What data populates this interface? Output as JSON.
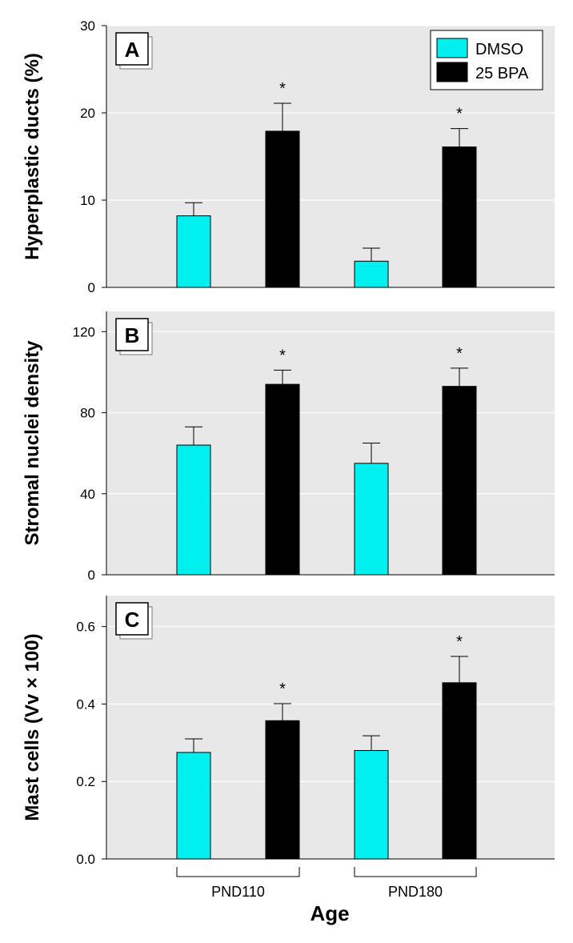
{
  "chart_data": [
    {
      "type": "bar",
      "panel": "A",
      "ylabel": "Hyperplastic ducts (%)",
      "ylim": [
        0,
        30
      ],
      "yticks": [
        "0",
        "10",
        "20",
        "30"
      ],
      "grid": true,
      "bars": [
        {
          "group": "PND110",
          "series": "DMSO",
          "value": 8.2,
          "error": 1.5,
          "significant": false
        },
        {
          "group": "PND110",
          "series": "25 BPA",
          "value": 17.9,
          "error": 3.2,
          "significant": true
        },
        {
          "group": "PND180",
          "series": "DMSO",
          "value": 3.0,
          "error": 1.5,
          "significant": false
        },
        {
          "group": "PND180",
          "series": "25 BPA",
          "value": 16.1,
          "error": 2.1,
          "significant": true
        }
      ]
    },
    {
      "type": "bar",
      "panel": "B",
      "ylabel": "Stromal nuclei density",
      "ylim": [
        0,
        130
      ],
      "yticks": [
        "0",
        "40",
        "80",
        "120"
      ],
      "grid": true,
      "bars": [
        {
          "group": "PND110",
          "series": "DMSO",
          "value": 64,
          "error": 9,
          "significant": false
        },
        {
          "group": "PND110",
          "series": "25 BPA",
          "value": 94,
          "error": 7,
          "significant": true
        },
        {
          "group": "PND180",
          "series": "DMSO",
          "value": 55,
          "error": 10,
          "significant": false
        },
        {
          "group": "PND180",
          "series": "25 BPA",
          "value": 93,
          "error": 9,
          "significant": true
        }
      ]
    },
    {
      "type": "bar",
      "panel": "C",
      "ylabel": "Mast cells (Vv × 100)",
      "ylim": [
        0,
        0.68
      ],
      "yticks": [
        "0.0",
        "0.2",
        "0.4",
        "0.6"
      ],
      "grid": true,
      "bars": [
        {
          "group": "PND110",
          "series": "DMSO",
          "value": 0.275,
          "error": 0.035,
          "significant": false
        },
        {
          "group": "PND110",
          "series": "25 BPA",
          "value": 0.357,
          "error": 0.044,
          "significant": true
        },
        {
          "group": "PND180",
          "series": "DMSO",
          "value": 0.28,
          "error": 0.038,
          "significant": false
        },
        {
          "group": "PND180",
          "series": "25 BPA",
          "value": 0.455,
          "error": 0.068,
          "significant": true
        }
      ]
    }
  ],
  "legend": {
    "placement": "top-right of panel A",
    "items": [
      {
        "label": "DMSO",
        "color": "#00f0f0"
      },
      {
        "label": "25 BPA",
        "color": "#000000"
      }
    ]
  },
  "groups": [
    "PND110",
    "PND180"
  ],
  "xlabel": "Age",
  "significance_marker": "*",
  "colors": {
    "panel_bg": "#e8e8e8",
    "grid": "#ffffff",
    "DMSO": "#00f0f0",
    "25 BPA": "#000000"
  }
}
